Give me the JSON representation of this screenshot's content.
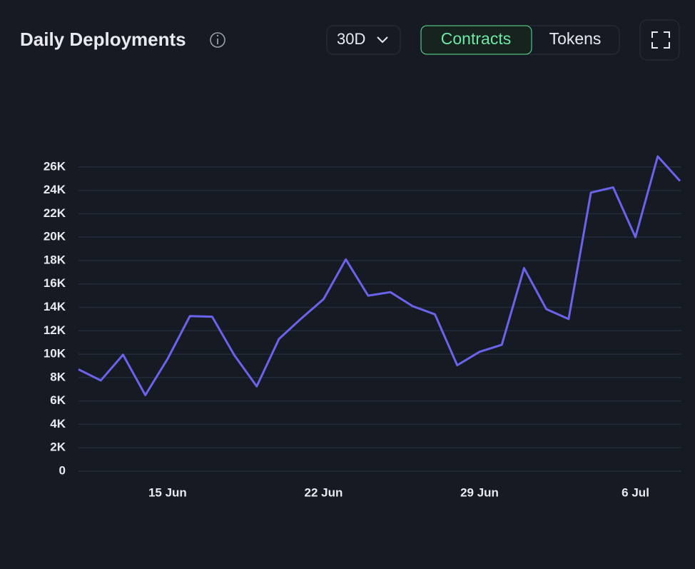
{
  "controls": {
    "range": "30D",
    "tabs": [
      "Contracts",
      "Tokens"
    ]
  },
  "chart_data": {
    "type": "line",
    "title": "Daily Deployments",
    "categories": [
      null,
      null,
      null,
      null,
      "15 Jun",
      null,
      null,
      null,
      null,
      null,
      null,
      "22 Jun",
      null,
      null,
      null,
      null,
      null,
      null,
      "29 Jun",
      null,
      null,
      null,
      null,
      null,
      null,
      "6 Jul",
      null,
      null
    ],
    "series": [
      {
        "name": "Contracts",
        "color": "#6c63ec",
        "values": [
          8700,
          7750,
          9950,
          6500,
          9600,
          13250,
          13200,
          9900,
          7250,
          11300,
          13050,
          14700,
          18100,
          15000,
          15300,
          14100,
          13400,
          9050,
          10200,
          10800,
          17350,
          13850,
          13000,
          23800,
          24250,
          20000,
          26900,
          24800
        ]
      }
    ],
    "ylim": [
      0,
      28000
    ],
    "yticks": [
      0,
      {
        "value": 2000,
        "label": "2K"
      },
      {
        "value": 4000,
        "label": "4K"
      },
      {
        "value": 6000,
        "label": "6K"
      },
      {
        "value": 8000,
        "label": "8K"
      },
      {
        "value": 10000,
        "label": "10K"
      },
      {
        "value": 12000,
        "label": "12K"
      },
      {
        "value": 14000,
        "label": "14K"
      },
      {
        "value": 16000,
        "label": "16K"
      },
      {
        "value": 18000,
        "label": "18K"
      },
      {
        "value": 20000,
        "label": "20K"
      },
      {
        "value": 22000,
        "label": "22K"
      },
      {
        "value": 24000,
        "label": "24K"
      },
      {
        "value": 26000,
        "label": "26K"
      }
    ],
    "grid": true
  }
}
